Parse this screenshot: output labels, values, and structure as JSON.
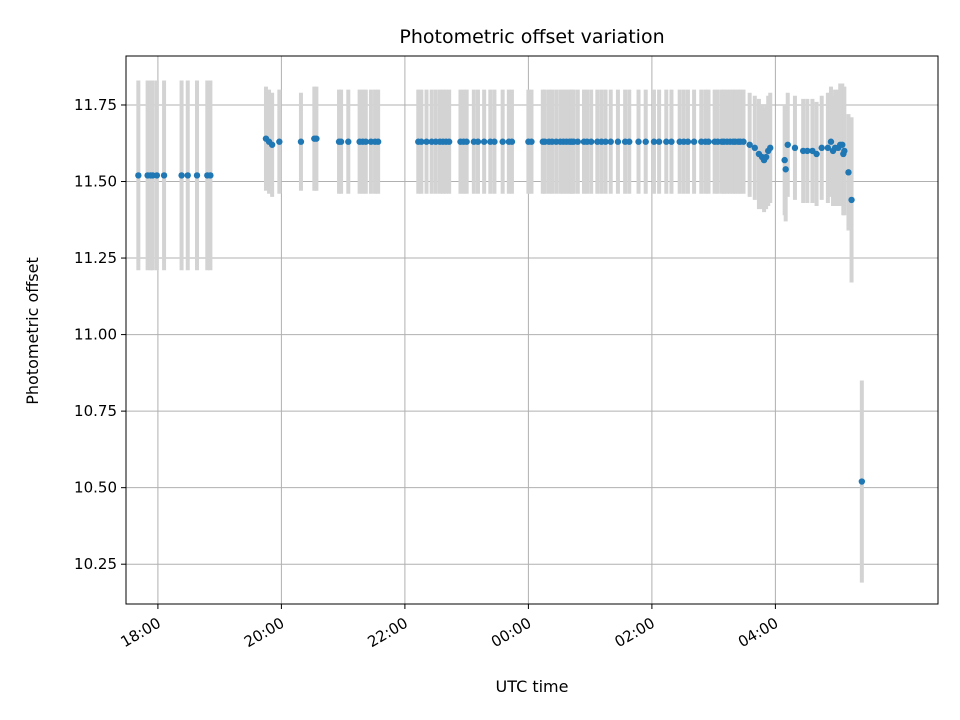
{
  "chart_data": {
    "type": "scatter",
    "title": "Photometric offset variation",
    "xlabel": "UTC time",
    "ylabel": "Photometric offset",
    "grid": true,
    "x_unit": "UTC time (hh:mm)",
    "xlim": [
      "17:29",
      "06:38"
    ],
    "ylim": [
      10.12,
      11.91
    ],
    "x_ticks": [
      "18:00",
      "20:00",
      "22:00",
      "00:00",
      "02:00",
      "04:00"
    ],
    "y_ticks": [
      "10.25",
      "10.50",
      "10.75",
      "11.00",
      "11.25",
      "11.50",
      "11.75"
    ],
    "colors": {
      "points": "#1f77b4",
      "errorbars": "#d3d3d3",
      "grid": "#b0b0b0"
    },
    "points": [
      {
        "x": "17:41",
        "y": 11.52,
        "err": 0.31
      },
      {
        "x": "17:50",
        "y": 11.52,
        "err": 0.31
      },
      {
        "x": "17:53",
        "y": 11.52,
        "err": 0.31
      },
      {
        "x": "17:55",
        "y": 11.52,
        "err": 0.31
      },
      {
        "x": "17:59",
        "y": 11.52,
        "err": 0.31
      },
      {
        "x": "18:06",
        "y": 11.52,
        "err": 0.31
      },
      {
        "x": "18:23",
        "y": 11.52,
        "err": 0.31
      },
      {
        "x": "18:29",
        "y": 11.52,
        "err": 0.31
      },
      {
        "x": "18:38",
        "y": 11.52,
        "err": 0.31
      },
      {
        "x": "18:48",
        "y": 11.52,
        "err": 0.31
      },
      {
        "x": "18:51",
        "y": 11.52,
        "err": 0.31
      },
      {
        "x": "19:45",
        "y": 11.64,
        "err": 0.17
      },
      {
        "x": "19:48",
        "y": 11.63,
        "err": 0.17
      },
      {
        "x": "19:51",
        "y": 11.62,
        "err": 0.17
      },
      {
        "x": "19:58",
        "y": 11.63,
        "err": 0.17
      },
      {
        "x": "20:19",
        "y": 11.63,
        "err": 0.16
      },
      {
        "x": "20:32",
        "y": 11.64,
        "err": 0.17
      },
      {
        "x": "20:34",
        "y": 11.64,
        "err": 0.17
      },
      {
        "x": "20:56",
        "y": 11.63,
        "err": 0.17
      },
      {
        "x": "20:58",
        "y": 11.63,
        "err": 0.17
      },
      {
        "x": "21:05",
        "y": 11.63,
        "err": 0.17
      },
      {
        "x": "21:16",
        "y": 11.63,
        "err": 0.17
      },
      {
        "x": "21:19",
        "y": 11.63,
        "err": 0.17
      },
      {
        "x": "21:22",
        "y": 11.63,
        "err": 0.17
      },
      {
        "x": "21:27",
        "y": 11.63,
        "err": 0.17
      },
      {
        "x": "21:31",
        "y": 11.63,
        "err": 0.17
      },
      {
        "x": "21:34",
        "y": 11.63,
        "err": 0.17
      },
      {
        "x": "22:13",
        "y": 11.63,
        "err": 0.17
      },
      {
        "x": "22:16",
        "y": 11.63,
        "err": 0.17
      },
      {
        "x": "22:21",
        "y": 11.63,
        "err": 0.17
      },
      {
        "x": "22:26",
        "y": 11.63,
        "err": 0.17
      },
      {
        "x": "22:30",
        "y": 11.63,
        "err": 0.17
      },
      {
        "x": "22:34",
        "y": 11.63,
        "err": 0.17
      },
      {
        "x": "22:37",
        "y": 11.63,
        "err": 0.17
      },
      {
        "x": "22:40",
        "y": 11.63,
        "err": 0.17
      },
      {
        "x": "22:43",
        "y": 11.63,
        "err": 0.17
      },
      {
        "x": "22:54",
        "y": 11.63,
        "err": 0.17
      },
      {
        "x": "22:57",
        "y": 11.63,
        "err": 0.17
      },
      {
        "x": "23:00",
        "y": 11.63,
        "err": 0.17
      },
      {
        "x": "23:07",
        "y": 11.63,
        "err": 0.17
      },
      {
        "x": "23:11",
        "y": 11.63,
        "err": 0.17
      },
      {
        "x": "23:17",
        "y": 11.63,
        "err": 0.17
      },
      {
        "x": "23:23",
        "y": 11.63,
        "err": 0.17
      },
      {
        "x": "23:27",
        "y": 11.63,
        "err": 0.17
      },
      {
        "x": "23:35",
        "y": 11.63,
        "err": 0.17
      },
      {
        "x": "23:41",
        "y": 11.63,
        "err": 0.17
      },
      {
        "x": "23:44",
        "y": 11.63,
        "err": 0.17
      },
      {
        "x": "00:00",
        "y": 11.63,
        "err": 0.17
      },
      {
        "x": "00:03",
        "y": 11.63,
        "err": 0.17
      },
      {
        "x": "00:14",
        "y": 11.63,
        "err": 0.17
      },
      {
        "x": "00:16",
        "y": 11.63,
        "err": 0.17
      },
      {
        "x": "00:20",
        "y": 11.63,
        "err": 0.17
      },
      {
        "x": "00:23",
        "y": 11.63,
        "err": 0.17
      },
      {
        "x": "00:27",
        "y": 11.63,
        "err": 0.17
      },
      {
        "x": "00:31",
        "y": 11.63,
        "err": 0.17
      },
      {
        "x": "00:34",
        "y": 11.63,
        "err": 0.17
      },
      {
        "x": "00:37",
        "y": 11.63,
        "err": 0.17
      },
      {
        "x": "00:40",
        "y": 11.63,
        "err": 0.17
      },
      {
        "x": "00:42",
        "y": 11.63,
        "err": 0.17
      },
      {
        "x": "00:44",
        "y": 11.63,
        "err": 0.17
      },
      {
        "x": "00:48",
        "y": 11.63,
        "err": 0.17
      },
      {
        "x": "00:54",
        "y": 11.63,
        "err": 0.17
      },
      {
        "x": "00:57",
        "y": 11.63,
        "err": 0.17
      },
      {
        "x": "01:01",
        "y": 11.63,
        "err": 0.17
      },
      {
        "x": "01:07",
        "y": 11.63,
        "err": 0.17
      },
      {
        "x": "01:11",
        "y": 11.63,
        "err": 0.17
      },
      {
        "x": "01:15",
        "y": 11.63,
        "err": 0.17
      },
      {
        "x": "01:20",
        "y": 11.63,
        "err": 0.17
      },
      {
        "x": "01:27",
        "y": 11.63,
        "err": 0.17
      },
      {
        "x": "01:34",
        "y": 11.63,
        "err": 0.17
      },
      {
        "x": "01:38",
        "y": 11.63,
        "err": 0.17
      },
      {
        "x": "01:47",
        "y": 11.63,
        "err": 0.17
      },
      {
        "x": "01:54",
        "y": 11.63,
        "err": 0.17
      },
      {
        "x": "02:02",
        "y": 11.63,
        "err": 0.17
      },
      {
        "x": "02:07",
        "y": 11.63,
        "err": 0.17
      },
      {
        "x": "02:14",
        "y": 11.63,
        "err": 0.17
      },
      {
        "x": "02:19",
        "y": 11.63,
        "err": 0.17
      },
      {
        "x": "02:27",
        "y": 11.63,
        "err": 0.17
      },
      {
        "x": "02:31",
        "y": 11.63,
        "err": 0.17
      },
      {
        "x": "02:35",
        "y": 11.63,
        "err": 0.17
      },
      {
        "x": "02:41",
        "y": 11.63,
        "err": 0.17
      },
      {
        "x": "02:48",
        "y": 11.63,
        "err": 0.17
      },
      {
        "x": "02:52",
        "y": 11.63,
        "err": 0.17
      },
      {
        "x": "02:55",
        "y": 11.63,
        "err": 0.17
      },
      {
        "x": "03:01",
        "y": 11.63,
        "err": 0.17
      },
      {
        "x": "03:04",
        "y": 11.63,
        "err": 0.17
      },
      {
        "x": "03:08",
        "y": 11.63,
        "err": 0.17
      },
      {
        "x": "03:10",
        "y": 11.63,
        "err": 0.17
      },
      {
        "x": "03:13",
        "y": 11.63,
        "err": 0.17
      },
      {
        "x": "03:16",
        "y": 11.63,
        "err": 0.17
      },
      {
        "x": "03:19",
        "y": 11.63,
        "err": 0.17
      },
      {
        "x": "03:21",
        "y": 11.63,
        "err": 0.17
      },
      {
        "x": "03:24",
        "y": 11.63,
        "err": 0.17
      },
      {
        "x": "03:26",
        "y": 11.63,
        "err": 0.17
      },
      {
        "x": "03:29",
        "y": 11.63,
        "err": 0.17
      },
      {
        "x": "03:35",
        "y": 11.62,
        "err": 0.17
      },
      {
        "x": "03:40",
        "y": 11.61,
        "err": 0.17
      },
      {
        "x": "03:44",
        "y": 11.59,
        "err": 0.18
      },
      {
        "x": "03:47",
        "y": 11.58,
        "err": 0.17
      },
      {
        "x": "03:49",
        "y": 11.57,
        "err": 0.17
      },
      {
        "x": "03:51",
        "y": 11.58,
        "err": 0.17
      },
      {
        "x": "03:53",
        "y": 11.6,
        "err": 0.18
      },
      {
        "x": "03:55",
        "y": 11.61,
        "err": 0.18
      },
      {
        "x": "04:09",
        "y": 11.57,
        "err": 0.18
      },
      {
        "x": "04:10",
        "y": 11.54,
        "err": 0.17
      },
      {
        "x": "04:12",
        "y": 11.62,
        "err": 0.17
      },
      {
        "x": "04:19",
        "y": 11.61,
        "err": 0.17
      },
      {
        "x": "04:27",
        "y": 11.6,
        "err": 0.17
      },
      {
        "x": "04:31",
        "y": 11.6,
        "err": 0.17
      },
      {
        "x": "04:36",
        "y": 11.6,
        "err": 0.17
      },
      {
        "x": "04:40",
        "y": 11.59,
        "err": 0.17
      },
      {
        "x": "04:45",
        "y": 11.61,
        "err": 0.17
      },
      {
        "x": "04:51",
        "y": 11.61,
        "err": 0.18
      },
      {
        "x": "04:54",
        "y": 11.63,
        "err": 0.18
      },
      {
        "x": "04:56",
        "y": 11.6,
        "err": 0.18
      },
      {
        "x": "04:58",
        "y": 11.61,
        "err": 0.19
      },
      {
        "x": "05:01",
        "y": 11.61,
        "err": 0.19
      },
      {
        "x": "05:03",
        "y": 11.62,
        "err": 0.2
      },
      {
        "x": "05:05",
        "y": 11.62,
        "err": 0.2
      },
      {
        "x": "05:06",
        "y": 11.59,
        "err": 0.2
      },
      {
        "x": "05:07",
        "y": 11.6,
        "err": 0.21
      },
      {
        "x": "05:11",
        "y": 11.53,
        "err": 0.19
      },
      {
        "x": "05:14",
        "y": 11.44,
        "err": 0.27
      },
      {
        "x": "05:24",
        "y": 10.52,
        "err": 0.33
      }
    ]
  }
}
